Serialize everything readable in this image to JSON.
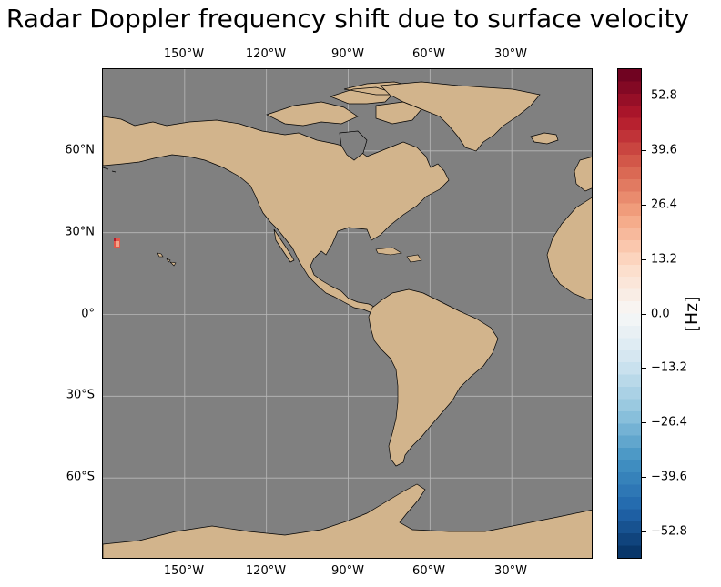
{
  "title": "Radar Doppler frequency shift due to surface velocity",
  "map": {
    "projection": "PlateCarree",
    "ocean_color": "#808080",
    "land_color": "#d2b48c",
    "gridlines": true,
    "lon_labels": [
      "150°W",
      "120°W",
      "90°W",
      "60°W",
      "30°W"
    ],
    "lat_labels": [
      "60°N",
      "30°N",
      "0°",
      "30°S",
      "60°S"
    ],
    "lon_values": [
      -150,
      -120,
      -90,
      -60,
      -30
    ],
    "lat_values": [
      60,
      30,
      0,
      -30,
      -60
    ],
    "extent": {
      "lon": [
        -180,
        0
      ],
      "lat": [
        -90,
        90
      ]
    },
    "data_patch": {
      "description_lon": [
        -176,
        -174
      ],
      "description_lat": [
        24,
        28
      ],
      "approx_value_hz": 35
    }
  },
  "colorbar": {
    "label": "[Hz]",
    "colormap": "RdBu_r",
    "range": [
      -59.4,
      59.4
    ],
    "ticks": [
      "52.8",
      "39.6",
      "26.4",
      "13.2",
      "0.0",
      "−13.2",
      "−26.4",
      "−39.6",
      "−52.8"
    ],
    "tick_values": [
      52.8,
      39.6,
      26.4,
      13.2,
      0.0,
      -13.2,
      -26.4,
      -39.6,
      -52.8
    ]
  }
}
